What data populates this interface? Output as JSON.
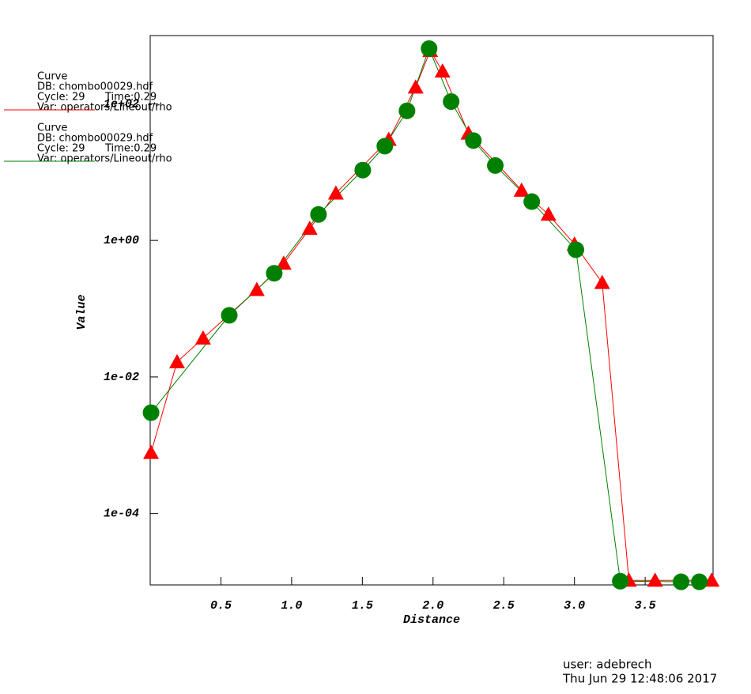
{
  "chart_data": {
    "type": "line",
    "xlabel": "Distance",
    "ylabel": "Value",
    "xlim": [
      0,
      3.98
    ],
    "ylim": [
      9e-06,
      1000
    ],
    "ylog": true,
    "grid": false,
    "xticks": [
      0.5,
      {
        "value": 1,
        "label": "1.0"
      },
      1.5,
      {
        "value": 2,
        "label": "2.0"
      },
      2.5,
      {
        "value": 3,
        "label": "3.0"
      },
      3.5
    ],
    "yticks": [
      {
        "value": 0.0001,
        "label": "1e-04"
      },
      {
        "value": 0.01,
        "label": "1e-02"
      },
      {
        "value": 1,
        "label": "1e+00"
      },
      {
        "value": 100,
        "label": "1e+02"
      }
    ],
    "series": [
      {
        "name": "Curve",
        "db": "DB: chombo00029.hdf",
        "cycle": "Cycle: 29",
        "time": "Time:0.29",
        "var": "Var: operators/Lineout/rho",
        "color": "#ff0000",
        "marker": "triangle",
        "x": [
          0.006,
          0.19,
          0.374,
          0.754,
          0.944,
          1.128,
          1.313,
          1.687,
          1.877,
          1.98,
          2.067,
          2.25,
          2.626,
          2.816,
          3.0,
          3.196,
          3.385,
          3.57,
          3.97
        ],
        "values": [
          0.00078,
          0.0166,
          0.037,
          0.19,
          0.46,
          1.49,
          4.9,
          30,
          175,
          600,
          300,
          37,
          5.4,
          2.4,
          0.88,
          0.24,
          1.05e-05,
          1.05e-05,
          1.05e-05
        ]
      },
      {
        "name": "Curve",
        "db": "DB: chombo00029.hdf",
        "cycle": "Cycle: 29",
        "time": "Time:0.29",
        "var": "Var: operators/Lineout/rho",
        "color": "#008000",
        "marker": "circle",
        "x": [
          0.006,
          0.559,
          0.877,
          1.19,
          1.503,
          1.659,
          1.816,
          1.972,
          2.128,
          2.285,
          2.44,
          2.698,
          3.01,
          3.324,
          3.754,
          3.883
        ],
        "values": [
          0.003,
          0.08,
          0.33,
          2.4,
          10.7,
          24,
          79,
          645,
          108,
          29,
          12.5,
          3.7,
          0.73,
          1.02e-05,
          1e-05,
          1e-05
        ]
      }
    ]
  },
  "footer": {
    "user": "user: adebrech",
    "date": "Thu Jun 29 12:48:06 2017"
  }
}
